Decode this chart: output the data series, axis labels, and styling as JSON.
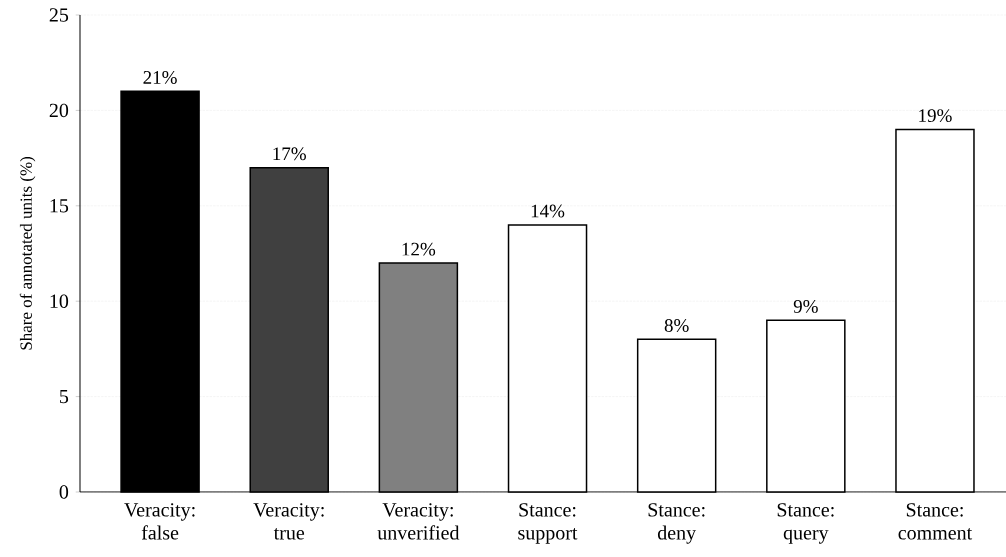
{
  "chart_data": {
    "type": "bar",
    "ylabel": "Share of annotated units (%)",
    "categories": [
      "Veracity: false",
      "Veracity: true",
      "Veracity: unverified",
      "Stance: support",
      "Stance: deny",
      "Stance: query",
      "Stance: comment"
    ],
    "values": [
      21,
      17,
      12,
      14,
      8,
      9,
      19
    ],
    "value_labels": [
      "21%",
      "17%",
      "12%",
      "14%",
      "8%",
      "9%",
      "19%"
    ],
    "colors": [
      "#000000",
      "#404040",
      "#808080",
      "#ffffff",
      "#ffffff",
      "#ffffff",
      "#ffffff"
    ],
    "ylim": [
      0,
      25
    ],
    "yticks": [
      0,
      5,
      10,
      15,
      20,
      25
    ],
    "grid": "y"
  }
}
